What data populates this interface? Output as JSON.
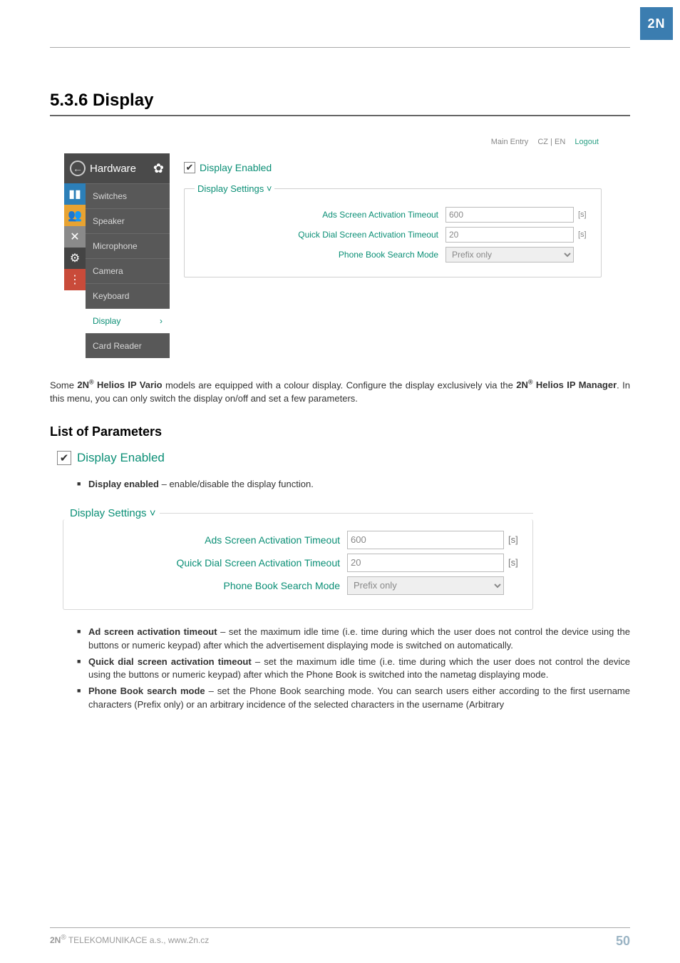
{
  "logo_text": "2N",
  "section_title": "5.3.6 Display",
  "top_links": {
    "main": "Main Entry",
    "lang": "CZ | EN",
    "logout": "Logout"
  },
  "sidebar": {
    "back_glyph": "←",
    "header": "Hardware",
    "gear_glyph": "✿",
    "items": [
      "Switches",
      "Speaker",
      "Microphone",
      "Camera",
      "Keyboard",
      "Display",
      "Card Reader"
    ],
    "active_index": 5,
    "chevron": "›"
  },
  "icon_strip": {
    "glyphs": [
      "▮▮",
      "👥",
      "✕",
      "⚙",
      "⋮⋮⋮"
    ],
    "colors": [
      "#2c7fb8",
      "#e8a332",
      "#8a8a8a",
      "#444444",
      "#c94b3a"
    ]
  },
  "display_enabled": {
    "checked_glyph": "✔",
    "label": "Display Enabled"
  },
  "settings": {
    "legend": "Display Settings ˅",
    "rows": [
      {
        "label": "Ads Screen Activation Timeout",
        "value": "600",
        "unit": "[s]",
        "type": "text"
      },
      {
        "label": "Quick Dial Screen Activation Timeout",
        "value": "20",
        "unit": "[s]",
        "type": "text"
      },
      {
        "label": "Phone Book Search Mode",
        "value": "Prefix only",
        "unit": "",
        "type": "select"
      }
    ]
  },
  "paragraph1_a": "Some ",
  "paragraph1_b": " Helios IP Vario",
  "paragraph1_c": " models are equipped with a colour display. Configure the display exclusively via the ",
  "paragraph1_d": " Helios IP Manager",
  "paragraph1_e": ". In this menu, you can only switch the display on/off and set a few parameters.",
  "brand": "2N",
  "reg": "®",
  "subhead": "List of Parameters",
  "bullet1": {
    "b": "Display enabled",
    "t": " – enable/disable the display function."
  },
  "settings2": {
    "legend": "Display Settings ˅",
    "rows": [
      {
        "label": "Ads Screen Activation Timeout",
        "value": "600",
        "unit": "[s]",
        "type": "text"
      },
      {
        "label": "Quick Dial Screen Activation Timeout",
        "value": "20",
        "unit": "[s]",
        "type": "text"
      },
      {
        "label": "Phone Book Search Mode",
        "value": "Prefix only",
        "unit": "",
        "type": "select"
      }
    ]
  },
  "bullets2": [
    {
      "b": "Ad screen activation timeout",
      "t": " – set the maximum idle time (i.e. time during which the user does not control the device using the buttons or numeric keypad) after which the advertisement displaying mode is switched on automatically."
    },
    {
      "b": "Quick dial screen activation timeout",
      "t": " – set the maximum idle time (i.e. time during which the user does not control the device using the buttons or numeric keypad) after which the Phone Book is switched into the nametag displaying mode."
    },
    {
      "b": "Phone Book search mode",
      "t": " – set the Phone Book searching mode. You can search users either according to the first username characters (Prefix only) or an arbitrary incidence of the selected characters in the username (Arbitrary"
    }
  ],
  "footer": {
    "left_a": "2N",
    "left_b": " TELEKOMUNIKACE a.s., www.2n.cz",
    "page": "50"
  }
}
